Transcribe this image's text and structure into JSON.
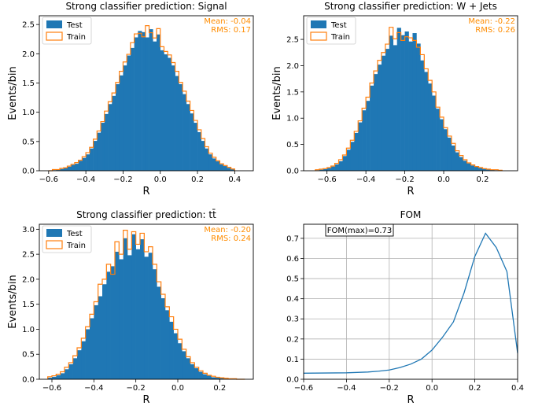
{
  "colors": {
    "test": "#1f77b4",
    "train": "#ff7f0e",
    "stats": "#ff8c00",
    "fom_line": "#1f77b4",
    "grid": "#b0b0b0"
  },
  "legend": {
    "test": "Test",
    "train": "Train"
  },
  "chart_data": [
    {
      "type": "histogram",
      "title": "Strong classifier prediction: Signal",
      "xlabel": "R",
      "ylabel": "Events/bin",
      "xlim": [
        -0.65,
        0.5
      ],
      "ylim": [
        0,
        2.65
      ],
      "xticks": [
        -0.6,
        -0.4,
        -0.2,
        0.0,
        0.2,
        0.4
      ],
      "xtick_labels": [
        "−0.6",
        "−0.4",
        "−0.2",
        "0.0",
        "0.2",
        "0.4"
      ],
      "yticks": [
        0,
        0.5,
        1.0,
        1.5,
        2.0,
        2.5
      ],
      "ytick_labels": [
        "0.0",
        "0.5",
        "1.0",
        "1.5",
        "2.0",
        "2.5"
      ],
      "legend_position": "upper-left",
      "stats": {
        "mean": "Mean: -0.04",
        "rms": "RMS: 0.17"
      },
      "bin_edges": {
        "start": -0.6,
        "width": 0.02,
        "count": 50
      },
      "series": [
        {
          "name": "Test",
          "style": "filled",
          "values": [
            0.0,
            0.01,
            0.02,
            0.03,
            0.05,
            0.07,
            0.1,
            0.12,
            0.17,
            0.22,
            0.28,
            0.38,
            0.51,
            0.65,
            0.82,
            0.97,
            1.14,
            1.28,
            1.48,
            1.63,
            1.8,
            1.97,
            2.1,
            2.28,
            2.39,
            2.37,
            2.28,
            2.42,
            2.21,
            2.33,
            2.06,
            1.99,
            1.93,
            1.8,
            1.62,
            1.48,
            1.31,
            1.14,
            0.98,
            0.82,
            0.66,
            0.51,
            0.38,
            0.28,
            0.21,
            0.16,
            0.11,
            0.08,
            0.05,
            0.03
          ]
        },
        {
          "name": "Train",
          "style": "step",
          "values": [
            0.0,
            0.02,
            0.02,
            0.04,
            0.05,
            0.08,
            0.11,
            0.14,
            0.18,
            0.24,
            0.31,
            0.4,
            0.54,
            0.68,
            0.84,
            1.02,
            1.18,
            1.33,
            1.51,
            1.7,
            1.86,
            1.99,
            2.19,
            2.34,
            2.35,
            2.29,
            2.48,
            2.36,
            2.27,
            2.43,
            2.12,
            2.04,
            1.98,
            1.85,
            1.7,
            1.51,
            1.36,
            1.19,
            1.03,
            0.86,
            0.7,
            0.55,
            0.41,
            0.3,
            0.23,
            0.17,
            0.12,
            0.09,
            0.06,
            0.03
          ]
        }
      ]
    },
    {
      "type": "histogram",
      "title": "Strong classifier prediction: W + Jets",
      "xlabel": "R",
      "ylabel": "Events/bin",
      "xlim": [
        -0.72,
        0.38
      ],
      "ylim": [
        0,
        2.95
      ],
      "xticks": [
        -0.6,
        -0.4,
        -0.2,
        0.0,
        0.2
      ],
      "xtick_labels": [
        "−0.6",
        "−0.4",
        "−0.2",
        "0.0",
        "0.2"
      ],
      "yticks": [
        0,
        0.5,
        1.0,
        1.5,
        2.0,
        2.5
      ],
      "ytick_labels": [
        "0.0",
        "0.5",
        "1.0",
        "1.5",
        "2.0",
        "2.5"
      ],
      "legend_position": "upper-left",
      "stats": {
        "mean": "Mean: -0.22",
        "rms": "RMS: 0.26"
      },
      "bin_edges": {
        "start": -0.66,
        "width": 0.02,
        "count": 48
      },
      "series": [
        {
          "name": "Test",
          "style": "filled",
          "values": [
            0.01,
            0.02,
            0.03,
            0.05,
            0.08,
            0.12,
            0.18,
            0.28,
            0.4,
            0.55,
            0.72,
            0.92,
            1.15,
            1.33,
            1.62,
            1.84,
            2.02,
            2.19,
            2.32,
            2.57,
            2.39,
            2.72,
            2.58,
            2.65,
            2.46,
            2.62,
            2.42,
            2.1,
            1.88,
            1.66,
            1.43,
            1.18,
            0.98,
            0.79,
            0.63,
            0.48,
            0.35,
            0.26,
            0.19,
            0.14,
            0.1,
            0.08,
            0.06,
            0.04,
            0.03,
            0.02,
            0.01,
            0.01
          ]
        },
        {
          "name": "Train",
          "style": "step",
          "values": [
            0.02,
            0.03,
            0.04,
            0.06,
            0.09,
            0.14,
            0.21,
            0.3,
            0.43,
            0.58,
            0.75,
            0.95,
            1.19,
            1.4,
            1.67,
            1.9,
            2.1,
            2.25,
            2.41,
            2.73,
            2.51,
            2.63,
            2.48,
            2.55,
            2.53,
            2.48,
            2.35,
            2.21,
            1.94,
            1.72,
            1.5,
            1.21,
            1.02,
            0.82,
            0.66,
            0.52,
            0.38,
            0.29,
            0.21,
            0.15,
            0.11,
            0.08,
            0.06,
            0.04,
            0.03,
            0.02,
            0.02,
            0.01
          ]
        }
      ]
    },
    {
      "type": "histogram",
      "title": "Strong classifier prediction: tt̄",
      "xlabel": "R",
      "ylabel": "Events/bin",
      "xlim": [
        -0.66,
        0.36
      ],
      "ylim": [
        0,
        3.1
      ],
      "xticks": [
        -0.6,
        -0.4,
        -0.2,
        0.0,
        0.2
      ],
      "xtick_labels": [
        "−0.6",
        "−0.4",
        "−0.2",
        "0.0",
        "0.2"
      ],
      "yticks": [
        0,
        0.5,
        1.0,
        1.5,
        2.0,
        2.5,
        3.0
      ],
      "ytick_labels": [
        "0.0",
        "0.5",
        "1.0",
        "1.5",
        "2.0",
        "2.5",
        "3.0"
      ],
      "legend_position": "upper-left",
      "stats": {
        "mean": "Mean: -0.20",
        "rms": "RMS: 0.24"
      },
      "bin_edges": {
        "start": -0.62,
        "width": 0.02,
        "count": 47
      },
      "series": [
        {
          "name": "Test",
          "style": "filled",
          "values": [
            0.03,
            0.05,
            0.08,
            0.12,
            0.2,
            0.3,
            0.42,
            0.58,
            0.76,
            1.0,
            1.22,
            1.48,
            1.66,
            1.9,
            2.15,
            2.26,
            2.55,
            2.4,
            2.82,
            2.48,
            2.9,
            2.6,
            2.8,
            2.45,
            2.53,
            2.2,
            1.85,
            1.62,
            1.38,
            1.15,
            0.92,
            0.72,
            0.56,
            0.42,
            0.3,
            0.22,
            0.15,
            0.1,
            0.07,
            0.04,
            0.03,
            0.02,
            0.01,
            0.01,
            0.0,
            0.0,
            0.0
          ]
        },
        {
          "name": "Train",
          "style": "step",
          "values": [
            0.05,
            0.07,
            0.1,
            0.15,
            0.24,
            0.33,
            0.47,
            0.63,
            0.82,
            1.05,
            1.3,
            1.55,
            1.9,
            2.0,
            2.3,
            2.1,
            2.75,
            2.5,
            2.98,
            2.6,
            2.95,
            2.7,
            2.92,
            2.55,
            2.65,
            2.3,
            1.95,
            1.7,
            1.45,
            1.25,
            1.0,
            0.8,
            0.6,
            0.45,
            0.33,
            0.24,
            0.17,
            0.12,
            0.08,
            0.06,
            0.04,
            0.03,
            0.02,
            0.01,
            0.01,
            0.0,
            0.0
          ]
        }
      ]
    },
    {
      "type": "line",
      "title": "FOM",
      "xlabel": "R",
      "ylabel": "",
      "xlim": [
        -0.6,
        0.4
      ],
      "ylim": [
        0,
        0.77
      ],
      "xticks": [
        -0.6,
        -0.4,
        -0.2,
        0.0,
        0.2,
        0.4
      ],
      "xtick_labels": [
        "−0.6",
        "−0.4",
        "−0.2",
        "0.0",
        "0.2",
        "0.4"
      ],
      "yticks": [
        0,
        0.1,
        0.2,
        0.3,
        0.4,
        0.5,
        0.6,
        0.7
      ],
      "ytick_labels": [
        "0.0",
        "0.1",
        "0.2",
        "0.3",
        "0.4",
        "0.5",
        "0.6",
        "0.7"
      ],
      "grid": true,
      "annotation": "FOM(max)=0.73",
      "x": [
        -0.6,
        -0.5,
        -0.4,
        -0.3,
        -0.25,
        -0.2,
        -0.15,
        -0.1,
        -0.05,
        0.0,
        0.05,
        0.1,
        0.15,
        0.2,
        0.25,
        0.3,
        0.35,
        0.4
      ],
      "y": [
        0.03,
        0.031,
        0.032,
        0.036,
        0.04,
        0.046,
        0.058,
        0.075,
        0.1,
        0.145,
        0.21,
        0.285,
        0.43,
        0.61,
        0.725,
        0.655,
        0.535,
        0.13
      ]
    }
  ]
}
